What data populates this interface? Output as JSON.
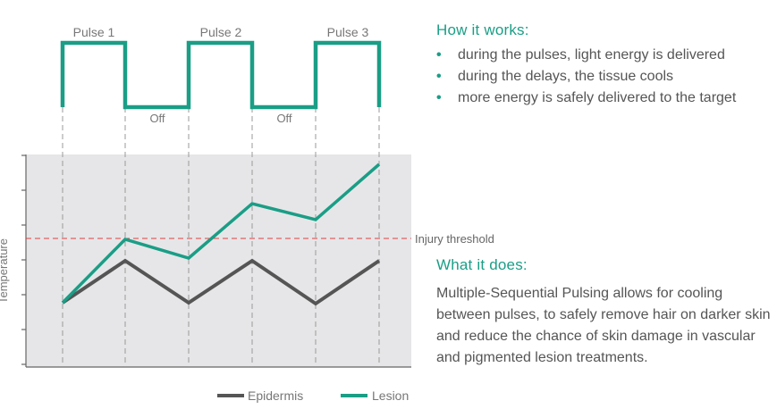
{
  "diagram": {
    "pulse_labels": [
      "Pulse 1",
      "Pulse 2",
      "Pulse 3"
    ],
    "off_labels": [
      "Off",
      "Off"
    ],
    "y_axis_label": "Temperature",
    "threshold_label": "Injury threshold",
    "legend": [
      {
        "name": "Epidermis",
        "color": "#555555"
      },
      {
        "name": "Lesion",
        "color": "#1a9e86"
      }
    ],
    "colors": {
      "accent": "#1a9e86",
      "epidermis": "#555555",
      "threshold": "#e04040",
      "plot_bg": "#e6e6e8"
    }
  },
  "how_it_works": {
    "heading": "How it works:",
    "bullets": [
      "during the pulses, light energy is delivered",
      "during the delays, the tissue cools",
      "more energy is safely delivered to the target"
    ]
  },
  "what_it_does": {
    "heading": "What it does:",
    "text": "Multiple-Sequential Pulsing allows for cooling between pulses, to safely remove hair on darker skin and reduce the chance of skin damage in vascular and pigmented lesion treatments."
  }
}
